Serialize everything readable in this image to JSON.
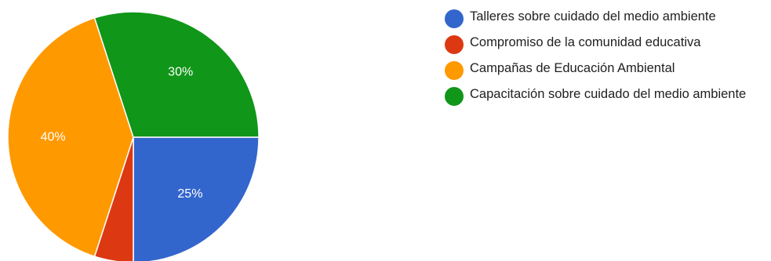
{
  "chart_data": {
    "type": "pie",
    "title": "",
    "legend_position": "right",
    "series": [
      {
        "name": "Talleres sobre cuidado del medio ambiente",
        "value": 25,
        "label": "25%",
        "color": "#3366cc"
      },
      {
        "name": "Compromiso de la comunidad educativa",
        "value": 5,
        "label": "",
        "color": "#dc3912"
      },
      {
        "name": "Campañas de Educación Ambiental",
        "value": 40,
        "label": "40%",
        "color": "#ff9900"
      },
      {
        "name": "Capacitación sobre cuidado del medio ambiente",
        "value": 30,
        "label": "30%",
        "color": "#109618"
      }
    ]
  }
}
